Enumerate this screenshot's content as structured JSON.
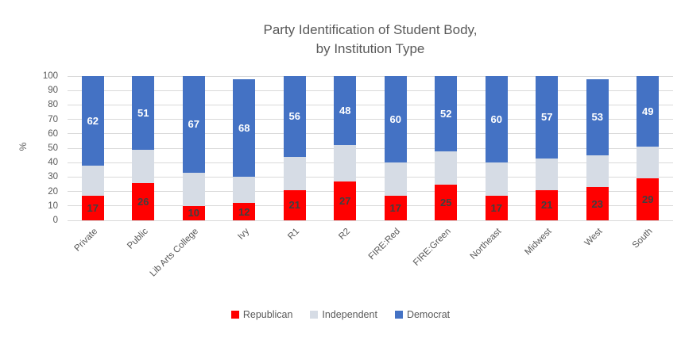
{
  "title": {
    "lines": [
      "Party Identification of Student Body,",
      "by Institution Type"
    ]
  },
  "y_axis": {
    "label": "%",
    "tick_values": [
      0,
      10,
      20,
      30,
      40,
      50,
      60,
      70,
      80,
      90,
      100
    ]
  },
  "colors": {
    "republican": "#FF0000",
    "independent": "#D6DCE5",
    "democrat": "#4472C4",
    "gridline": "#D9D9D9",
    "axis_text": "#595959",
    "label_on_red": "#404040",
    "label_on_blue": "#FFFFFF"
  },
  "chart_data": {
    "type": "bar",
    "stacked": true,
    "title": "Party Identification of Student Body, by Institution Type",
    "ylabel": "%",
    "ylim": [
      0,
      100
    ],
    "grid": true,
    "legend_position": "bottom",
    "categories": [
      "Private",
      "Public",
      "Lib Arts College",
      "Ivy",
      "R1",
      "R2",
      "FIRE:Red",
      "FIRE:Green",
      "Northeast",
      "Midwest",
      "West",
      "South"
    ],
    "series": [
      {
        "name": "Republican",
        "color": "#FF0000",
        "values": [
          17,
          26,
          10,
          12,
          21,
          27,
          17,
          25,
          17,
          21,
          23,
          29
        ],
        "data_labels": true,
        "label_color": "#404040"
      },
      {
        "name": "Independent",
        "color": "#D6DCE5",
        "values": [
          21,
          23,
          23,
          18,
          23,
          25,
          23,
          23,
          23,
          22,
          22,
          22
        ],
        "data_labels": false,
        "label_color": ""
      },
      {
        "name": "Democrat",
        "color": "#4472C4",
        "values": [
          62,
          51,
          67,
          68,
          56,
          48,
          60,
          52,
          60,
          57,
          53,
          49
        ],
        "data_labels": true,
        "label_color": "#FFFFFF"
      }
    ]
  }
}
